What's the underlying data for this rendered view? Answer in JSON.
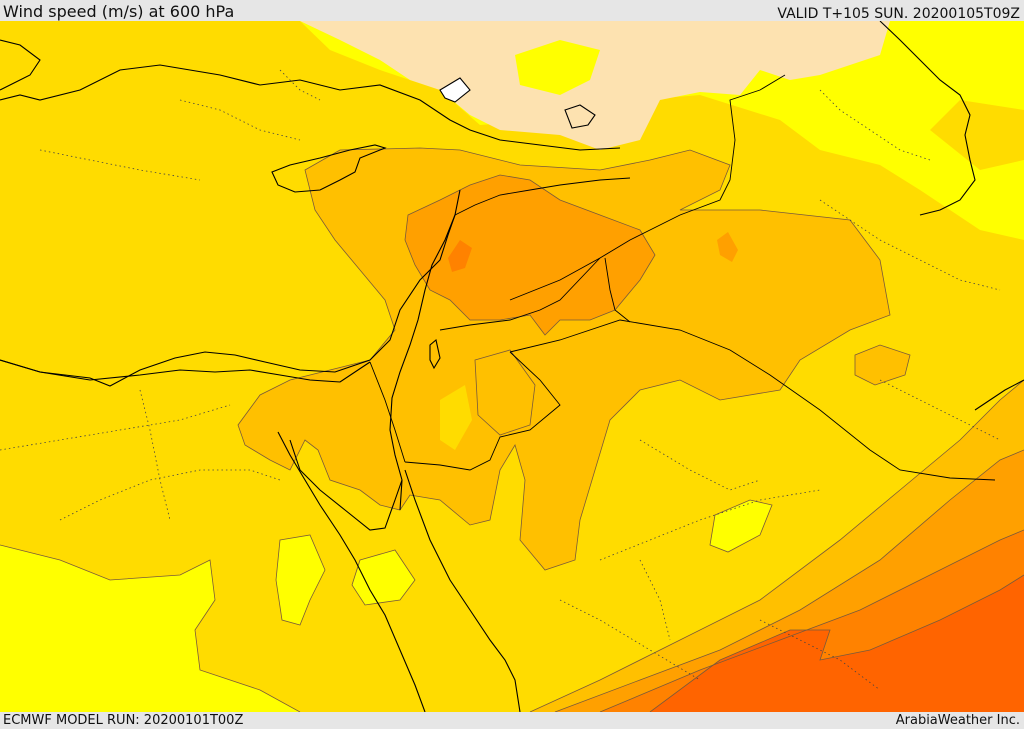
{
  "header": {
    "title": "Wind speed (m/s) at 600 hPa",
    "valid": "VALID T+105 SUN. 20200105T09Z"
  },
  "footer": {
    "model_run": "ECMWF MODEL RUN: 20200101T00Z",
    "credit": "ArabiaWeather Inc."
  },
  "map": {
    "variable": "wind speed",
    "level": "600 hPa",
    "palette": {
      "bin_1": "#fde2b0",
      "bin_2": "#ffff00",
      "bin_3": "#ffdc00",
      "bin_4": "#ffc000",
      "bin_5": "#ffa000",
      "bin_6": "#ff8200",
      "bin_7": "#ff6400",
      "coastline": "#000000",
      "border": "#000000",
      "contour": "#7a5a3a"
    }
  }
}
